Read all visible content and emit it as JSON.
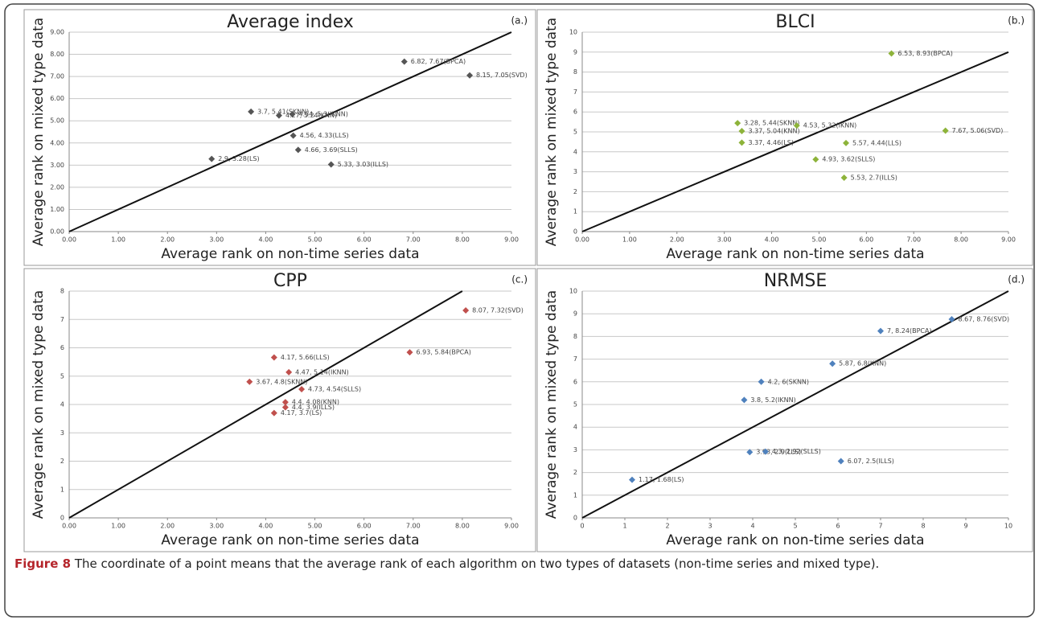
{
  "chart_data": [
    {
      "type": "scatter",
      "title": "Average  index",
      "panel_label": "(a.)",
      "x_label": "Average rank on non-time series data",
      "y_label": "Average rank on mixed type data",
      "xlim": [
        0,
        9
      ],
      "ylim": [
        0,
        9
      ],
      "xticks": [
        {
          "value": 0,
          "label": "0.00"
        },
        {
          "value": 1,
          "label": "1.00"
        },
        {
          "value": 2,
          "label": "2.00"
        },
        {
          "value": 3,
          "label": "3.00"
        },
        {
          "value": 4,
          "label": "4.00"
        },
        {
          "value": 5,
          "label": "5.00"
        },
        {
          "value": 6,
          "label": "6.00"
        },
        {
          "value": 7,
          "label": "7.00"
        },
        {
          "value": 8,
          "label": "8.00"
        },
        {
          "value": 9,
          "label": "9.00"
        }
      ],
      "yticks": [
        {
          "value": 0,
          "label": "0.00"
        },
        {
          "value": 1,
          "label": "1.00"
        },
        {
          "value": 2,
          "label": "2.00"
        },
        {
          "value": 3,
          "label": "3.00"
        },
        {
          "value": 4,
          "label": "4.00"
        },
        {
          "value": 5,
          "label": "5.00"
        },
        {
          "value": 6,
          "label": "6.00"
        },
        {
          "value": 7,
          "label": "7.00"
        },
        {
          "value": 8,
          "label": "8.00"
        },
        {
          "value": 9,
          "label": "9.00"
        }
      ],
      "grid": true,
      "series": [
        {
          "color": "#555555",
          "x": [
            2.9,
            3.7,
            4.27,
            4.54,
            4.56,
            4.66,
            5.33,
            6.82,
            8.15
          ],
          "values": [
            3.28,
            5.41,
            5.24,
            5.3,
            4.33,
            3.69,
            3.03,
            7.67,
            7.05
          ],
          "value_labels": [
            "2.9, 3.28(LS)",
            "3.7, 5.41(SKNN)",
            "4.27, 5.24(KNN)",
            "4.54, 5.3(IKNN)",
            "4.56, 4.33(LLS)",
            "4.66, 3.69(SLLS)",
            "5.33, 3.03(ILLS)",
            "6.82, 7.67(BPCA)",
            "8.15, 7.05(SVD)"
          ]
        }
      ]
    },
    {
      "type": "scatter",
      "title": "BLCI",
      "panel_label": "(b.)",
      "x_label": "Average rank on non-time series data",
      "y_label": "Average rank on mixed type data",
      "xlim": [
        0,
        9
      ],
      "ylim": [
        0,
        10
      ],
      "xticks": [
        {
          "value": 0,
          "label": "0.00"
        },
        {
          "value": 1,
          "label": "1.00"
        },
        {
          "value": 2,
          "label": "2.00"
        },
        {
          "value": 3,
          "label": "3.00"
        },
        {
          "value": 4,
          "label": "4.00"
        },
        {
          "value": 5,
          "label": "5.00"
        },
        {
          "value": 6,
          "label": "6.00"
        },
        {
          "value": 7,
          "label": "7.00"
        },
        {
          "value": 8,
          "label": "8.00"
        },
        {
          "value": 9,
          "label": "9.00"
        }
      ],
      "yticks": [
        0,
        1,
        2,
        3,
        4,
        5,
        6,
        7,
        8,
        9,
        10
      ],
      "grid": true,
      "series": [
        {
          "color": "#8db33a",
          "x": [
            3.28,
            3.37,
            3.37,
            4.53,
            5.57,
            4.93,
            5.53,
            6.53,
            7.67
          ],
          "values": [
            5.44,
            5.04,
            4.46,
            5.32,
            4.44,
            3.62,
            2.7,
            8.93,
            5.06
          ],
          "value_labels": [
            "3.28, 5.44(SKNN)",
            "3.37, 5.04(KNN)",
            "3.37, 4.46(LS)",
            "4.53, 5.32(IKNN)",
            "5.57, 4.44(LLS)",
            "4.93, 3.62(SLLS)",
            "5.53, 2.7(ILLS)",
            "6.53, 8.93(BPCA)",
            "7.67, 5.06(SVD)"
          ]
        }
      ]
    },
    {
      "type": "scatter",
      "title": "CPP",
      "panel_label": "(c.)",
      "x_label": "Average rank on non-time series data",
      "y_label": "Average rank on mixed type data",
      "xlim": [
        0,
        9
      ],
      "ylim": [
        0,
        8
      ],
      "xticks": [
        {
          "value": 0,
          "label": "0.00"
        },
        {
          "value": 1,
          "label": "1.00"
        },
        {
          "value": 2,
          "label": "2.00"
        },
        {
          "value": 3,
          "label": "3.00"
        },
        {
          "value": 4,
          "label": "4.00"
        },
        {
          "value": 5,
          "label": "5.00"
        },
        {
          "value": 6,
          "label": "6.00"
        },
        {
          "value": 7,
          "label": "7.00"
        },
        {
          "value": 8,
          "label": "8.00"
        },
        {
          "value": 9,
          "label": "9.00"
        }
      ],
      "yticks": [
        0,
        1,
        2,
        3,
        4,
        5,
        6,
        7,
        8
      ],
      "grid": true,
      "series": [
        {
          "color": "#c0504d",
          "x": [
            4.17,
            4.47,
            3.67,
            4.73,
            4.4,
            4.4,
            4.17,
            6.93,
            8.07
          ],
          "values": [
            5.66,
            5.14,
            4.8,
            4.54,
            4.08,
            3.9,
            3.7,
            5.84,
            7.32
          ],
          "value_labels": [
            "4.17, 5.66(LLS)",
            "4.47, 5.14(IKNN)",
            "3.67, 4.8(SKNN)",
            "4.73, 4.54(SLLS)",
            "4.4, 4.08(KNN)",
            "4.4, 3.9(ILLS)",
            "4.17, 3.7(LS)",
            "6.93, 5.84(BPCA)",
            "8.07, 7.32(SVD)"
          ]
        }
      ]
    },
    {
      "type": "scatter",
      "title": "NRMSE",
      "panel_label": "(d.)",
      "x_label": "Average rank on non-time series data",
      "y_label": "Average rank on mixed type data",
      "xlim": [
        0,
        10
      ],
      "ylim": [
        0,
        10
      ],
      "xticks": [
        0,
        1,
        2,
        3,
        4,
        5,
        6,
        7,
        8,
        9,
        10
      ],
      "yticks": [
        0,
        1,
        2,
        3,
        4,
        5,
        6,
        7,
        8,
        9,
        10
      ],
      "grid": true,
      "series": [
        {
          "color": "#4f81bd",
          "x": [
            1.17,
            3.93,
            4.3,
            3.8,
            4.2,
            5.87,
            7,
            8.67,
            6.07
          ],
          "values": [
            1.68,
            2.9,
            2.92,
            5.2,
            6,
            6.8,
            8.24,
            8.76,
            2.5
          ],
          "value_labels": [
            "1.17, 1.68(LS)",
            "3.93, 2.9(LLS)",
            "4.3, 2.92(SLLS)",
            "3.8, 5.2(IKNN)",
            "4.2, 6(SKNN)",
            "5.87, 6.8(KNN)",
            "7, 8.24(BPCA)",
            "8.67, 8.76(SVD)",
            "6.07, 2.5(ILLS)"
          ]
        }
      ]
    }
  ],
  "caption": {
    "label": "Figure 8",
    "text": "The coordinate of a point means that the average rank of each algorithm on two types of datasets (non-time series and mixed type)."
  }
}
